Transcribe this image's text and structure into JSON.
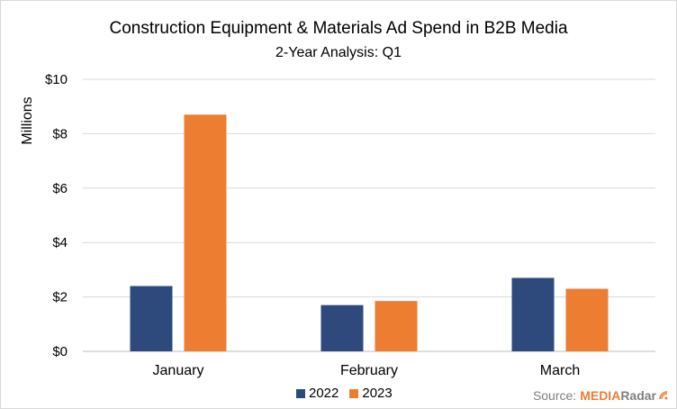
{
  "chart_data": {
    "type": "bar",
    "title": "Construction Equipment & Materials Ad Spend in B2B Media",
    "subtitle": "2-Year Analysis: Q1",
    "ylabel": "Millions",
    "categories": [
      "January",
      "February",
      "March"
    ],
    "series": [
      {
        "name": "2022",
        "color": "#2e4a7d",
        "values": [
          2.4,
          1.7,
          2.7
        ]
      },
      {
        "name": "2023",
        "color": "#ed7d31",
        "values": [
          8.7,
          1.85,
          2.3
        ]
      }
    ],
    "ylim": [
      0,
      10
    ],
    "yticks": [
      0,
      2,
      4,
      6,
      8,
      10
    ],
    "ytick_labels": [
      "$0",
      "$2",
      "$4",
      "$6",
      "$8",
      "$10"
    ],
    "grid": true,
    "legend": "bottom"
  },
  "source": {
    "prefix": "Source:",
    "brand_first": "MEDIA",
    "brand_second": "Radar"
  },
  "icons": {
    "radar": "radar-icon"
  }
}
